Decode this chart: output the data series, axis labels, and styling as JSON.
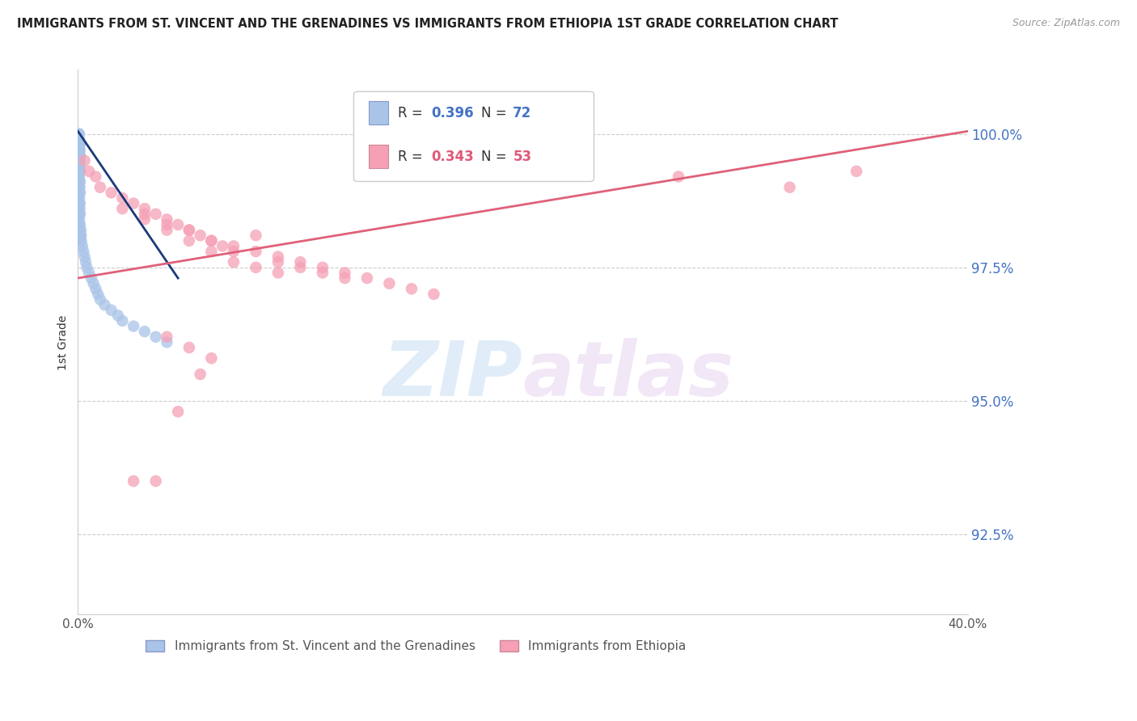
{
  "title": "IMMIGRANTS FROM ST. VINCENT AND THE GRENADINES VS IMMIGRANTS FROM ETHIOPIA 1ST GRADE CORRELATION CHART",
  "source": "Source: ZipAtlas.com",
  "ylabel": "1st Grade",
  "xlim": [
    0.0,
    40.0
  ],
  "ylim": [
    91.0,
    101.2
  ],
  "ytick_positions": [
    92.5,
    95.0,
    97.5,
    100.0
  ],
  "blue_color": "#aac4e8",
  "pink_color": "#f5a0b5",
  "blue_line_color": "#1a3a7a",
  "pink_line_color": "#e0607a",
  "legend_label_blue": "Immigrants from St. Vincent and the Grenadines",
  "legend_label_pink": "Immigrants from Ethiopia",
  "watermark_zip": "ZIP",
  "watermark_atlas": "atlas",
  "blue_scatter_x": [
    0.02,
    0.03,
    0.04,
    0.05,
    0.06,
    0.07,
    0.08,
    0.09,
    0.1,
    0.02,
    0.03,
    0.04,
    0.05,
    0.06,
    0.07,
    0.08,
    0.09,
    0.1,
    0.02,
    0.03,
    0.04,
    0.05,
    0.06,
    0.07,
    0.08,
    0.09,
    0.1,
    0.02,
    0.03,
    0.04,
    0.05,
    0.06,
    0.07,
    0.08,
    0.09,
    0.1,
    0.02,
    0.03,
    0.04,
    0.05,
    0.06,
    0.07,
    0.08,
    0.09,
    0.1,
    0.11,
    0.12,
    0.13,
    0.14,
    0.15,
    0.2,
    0.25,
    0.3,
    0.35,
    0.4,
    0.5,
    0.6,
    0.7,
    0.8,
    0.9,
    1.0,
    1.2,
    1.5,
    1.8,
    2.0,
    2.5,
    3.0,
    3.5,
    4.0,
    0.05,
    0.06,
    0.07
  ],
  "blue_scatter_y": [
    99.8,
    99.9,
    100.0,
    100.0,
    99.9,
    99.8,
    99.7,
    99.8,
    99.6,
    99.5,
    99.6,
    99.7,
    99.8,
    99.6,
    99.5,
    99.4,
    99.5,
    99.3,
    99.2,
    99.3,
    99.4,
    99.3,
    99.2,
    99.1,
    99.0,
    99.1,
    98.9,
    98.8,
    98.9,
    99.0,
    98.9,
    98.8,
    98.7,
    98.6,
    98.7,
    98.5,
    98.4,
    98.5,
    98.6,
    98.5,
    98.4,
    98.3,
    98.2,
    98.3,
    98.1,
    98.0,
    98.1,
    98.2,
    98.1,
    98.0,
    97.9,
    97.8,
    97.7,
    97.6,
    97.5,
    97.4,
    97.3,
    97.2,
    97.1,
    97.0,
    96.9,
    96.8,
    96.7,
    96.6,
    96.5,
    96.4,
    96.3,
    96.2,
    96.1,
    99.9,
    99.8,
    99.7
  ],
  "pink_scatter_x": [
    0.3,
    0.5,
    0.8,
    1.0,
    1.5,
    2.0,
    2.5,
    3.0,
    3.5,
    4.0,
    4.5,
    5.0,
    5.5,
    6.0,
    6.5,
    7.0,
    8.0,
    9.0,
    10.0,
    11.0,
    12.0,
    13.0,
    14.0,
    15.0,
    16.0,
    3.0,
    4.0,
    5.0,
    6.0,
    7.0,
    8.0,
    9.0,
    10.0,
    11.0,
    12.0,
    2.0,
    3.0,
    4.0,
    5.0,
    6.0,
    7.0,
    8.0,
    9.0,
    27.0,
    32.0,
    35.0,
    2.5,
    3.5,
    4.5,
    5.5,
    4.0,
    5.0,
    6.0
  ],
  "pink_scatter_y": [
    99.5,
    99.3,
    99.2,
    99.0,
    98.9,
    98.8,
    98.7,
    98.6,
    98.5,
    98.4,
    98.3,
    98.2,
    98.1,
    98.0,
    97.9,
    97.8,
    98.1,
    97.7,
    97.6,
    97.5,
    97.4,
    97.3,
    97.2,
    97.1,
    97.0,
    98.5,
    98.3,
    98.2,
    98.0,
    97.9,
    97.8,
    97.6,
    97.5,
    97.4,
    97.3,
    98.6,
    98.4,
    98.2,
    98.0,
    97.8,
    97.6,
    97.5,
    97.4,
    99.2,
    99.0,
    99.3,
    93.5,
    93.5,
    94.8,
    95.5,
    96.2,
    96.0,
    95.8
  ],
  "blue_line_x0": 0.0,
  "blue_line_x1": 4.5,
  "blue_line_y0": 100.05,
  "blue_line_y1": 97.3,
  "pink_line_x0": 0.0,
  "pink_line_x1": 40.0,
  "pink_line_y0": 97.3,
  "pink_line_y1": 100.05
}
